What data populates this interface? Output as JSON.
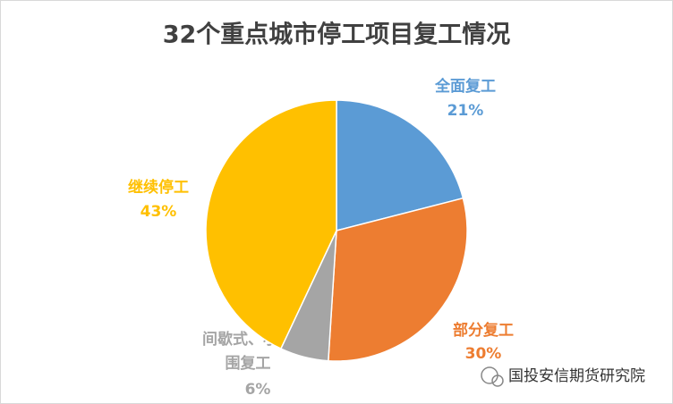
{
  "chart_data": {
    "type": "pie",
    "title": "32个重点城市停工项目复工情况",
    "categories": [
      "全面复工",
      "部分复工",
      "间歇式、小范围复工",
      "继续停工"
    ],
    "values": [
      21,
      30,
      6,
      43
    ],
    "value_labels": [
      "21%",
      "30%",
      "6%",
      "43%"
    ],
    "colors": [
      "#5b9bd5",
      "#ed7d31",
      "#a5a5a5",
      "#ffc000"
    ],
    "watermark": "国投安信期货研究院"
  }
}
